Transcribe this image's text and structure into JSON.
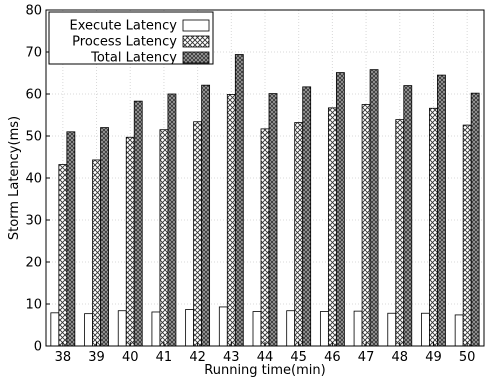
{
  "chart_data": {
    "type": "bar",
    "xlabel": "Running time(min)",
    "ylabel": "Storm Latency(ms)",
    "ylim": [
      0,
      80
    ],
    "yticks": [
      0,
      10,
      20,
      30,
      40,
      50,
      60,
      70,
      80
    ],
    "grid": true,
    "legend_position": "top-left",
    "categories": [
      "38",
      "39",
      "40",
      "41",
      "42",
      "43",
      "44",
      "45",
      "46",
      "47",
      "48",
      "49",
      "50"
    ],
    "series": [
      {
        "name": "Execute Latency",
        "pattern": "plain",
        "values": [
          7.9,
          7.7,
          8.4,
          8.1,
          8.7,
          9.3,
          8.2,
          8.4,
          8.2,
          8.3,
          7.8,
          7.8,
          7.4
        ]
      },
      {
        "name": "Process Latency",
        "pattern": "crosshatch",
        "values": [
          43.2,
          44.3,
          49.7,
          51.5,
          53.4,
          59.9,
          51.7,
          53.2,
          56.7,
          57.5,
          53.9,
          56.6,
          52.6
        ]
      },
      {
        "name": "Total Latency",
        "pattern": "dark-crosshatch",
        "values": [
          51.0,
          52.0,
          58.3,
          60.0,
          62.1,
          69.4,
          60.1,
          61.7,
          65.1,
          65.8,
          62.0,
          64.5,
          60.2
        ]
      }
    ]
  }
}
